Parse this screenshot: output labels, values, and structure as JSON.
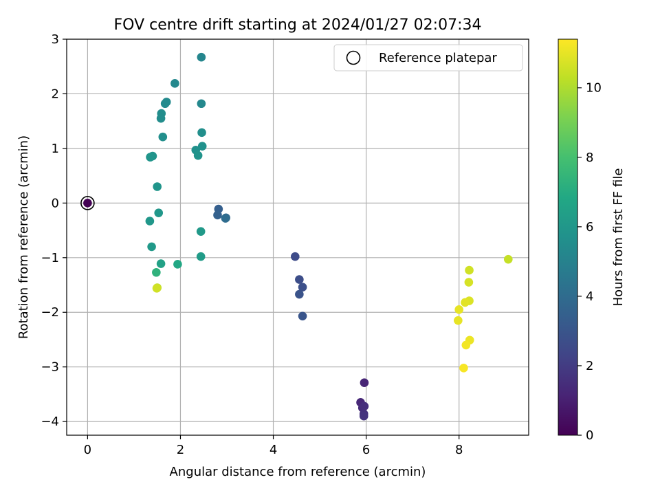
{
  "chart_data": {
    "type": "scatter",
    "title": "FOV centre drift starting at 2024/01/27 02:07:34",
    "xlabel": "Angular distance from reference (arcmin)",
    "ylabel": "Rotation from reference (arcmin)",
    "xlim": [
      -0.45,
      9.5
    ],
    "ylim": [
      -4.25,
      3.0
    ],
    "xticks": [
      0,
      2,
      4,
      6,
      8
    ],
    "yticks": [
      -4,
      -3,
      -2,
      -1,
      0,
      1,
      2,
      3
    ],
    "xtick_labels": [
      "0",
      "2",
      "4",
      "6",
      "8"
    ],
    "ytick_labels": [
      "−4",
      "−3",
      "−2",
      "−1",
      "0",
      "1",
      "2",
      "3"
    ],
    "grid": true,
    "legend": {
      "placement": "top-right",
      "entries": [
        {
          "label": "Reference platepar",
          "marker": "open-circle"
        }
      ]
    },
    "colorbar": {
      "label": "Hours from first FF file",
      "colormap": "viridis",
      "range": [
        0,
        11.4
      ],
      "ticks": [
        0,
        2,
        4,
        6,
        8,
        10
      ],
      "tick_labels": [
        "0",
        "2",
        "4",
        "6",
        "8",
        "10"
      ]
    },
    "reference_point": {
      "x": 0,
      "y": 0
    },
    "points": [
      {
        "x": 0.0,
        "y": 0.0,
        "c": 0.0
      },
      {
        "x": 5.96,
        "y": -3.29,
        "c": 1.2
      },
      {
        "x": 5.88,
        "y": -3.65,
        "c": 1.3
      },
      {
        "x": 5.92,
        "y": -3.75,
        "c": 1.4
      },
      {
        "x": 5.96,
        "y": -3.72,
        "c": 1.5
      },
      {
        "x": 5.95,
        "y": -3.86,
        "c": 1.6
      },
      {
        "x": 5.95,
        "y": -3.9,
        "c": 1.7
      },
      {
        "x": 4.47,
        "y": -0.98,
        "c": 2.6
      },
      {
        "x": 4.56,
        "y": -1.4,
        "c": 2.7
      },
      {
        "x": 4.63,
        "y": -1.54,
        "c": 2.8
      },
      {
        "x": 4.56,
        "y": -1.67,
        "c": 2.9
      },
      {
        "x": 4.63,
        "y": -2.07,
        "c": 3.0
      },
      {
        "x": 2.82,
        "y": -0.11,
        "c": 3.4
      },
      {
        "x": 2.8,
        "y": -0.22,
        "c": 3.5
      },
      {
        "x": 2.98,
        "y": -0.27,
        "c": 3.8
      },
      {
        "x": 2.97,
        "y": -0.28,
        "c": 4.0
      },
      {
        "x": 2.45,
        "y": 2.67,
        "c": 5.2
      },
      {
        "x": 1.88,
        "y": 2.19,
        "c": 5.3
      },
      {
        "x": 2.45,
        "y": 1.82,
        "c": 5.3
      },
      {
        "x": 1.7,
        "y": 1.85,
        "c": 5.4
      },
      {
        "x": 1.67,
        "y": 1.82,
        "c": 5.4
      },
      {
        "x": 1.59,
        "y": 1.64,
        "c": 5.5
      },
      {
        "x": 1.58,
        "y": 1.55,
        "c": 5.5
      },
      {
        "x": 2.46,
        "y": 1.29,
        "c": 5.6
      },
      {
        "x": 1.62,
        "y": 1.21,
        "c": 5.6
      },
      {
        "x": 2.47,
        "y": 1.04,
        "c": 5.7
      },
      {
        "x": 2.33,
        "y": 0.97,
        "c": 5.7
      },
      {
        "x": 2.38,
        "y": 0.87,
        "c": 5.8
      },
      {
        "x": 1.4,
        "y": 0.86,
        "c": 5.8
      },
      {
        "x": 1.35,
        "y": 0.84,
        "c": 5.9
      },
      {
        "x": 1.5,
        "y": 0.3,
        "c": 5.9
      },
      {
        "x": 1.53,
        "y": -0.18,
        "c": 6.0
      },
      {
        "x": 1.34,
        "y": -0.33,
        "c": 6.0
      },
      {
        "x": 2.44,
        "y": -0.52,
        "c": 6.1
      },
      {
        "x": 1.38,
        "y": -0.8,
        "c": 6.1
      },
      {
        "x": 2.44,
        "y": -0.98,
        "c": 6.2
      },
      {
        "x": 1.58,
        "y": -1.11,
        "c": 6.5
      },
      {
        "x": 1.94,
        "y": -1.12,
        "c": 6.8
      },
      {
        "x": 1.48,
        "y": -1.27,
        "c": 7.3
      },
      {
        "x": 1.5,
        "y": -1.55,
        "c": 10.3
      },
      {
        "x": 1.49,
        "y": -1.56,
        "c": 10.6
      },
      {
        "x": 9.06,
        "y": -1.03,
        "c": 10.4
      },
      {
        "x": 8.22,
        "y": -1.23,
        "c": 10.6
      },
      {
        "x": 8.21,
        "y": -1.45,
        "c": 10.7
      },
      {
        "x": 8.22,
        "y": -1.79,
        "c": 10.8
      },
      {
        "x": 8.13,
        "y": -1.82,
        "c": 10.9
      },
      {
        "x": 8.0,
        "y": -1.95,
        "c": 11.0
      },
      {
        "x": 7.98,
        "y": -2.15,
        "c": 11.0
      },
      {
        "x": 8.23,
        "y": -2.51,
        "c": 11.1
      },
      {
        "x": 8.15,
        "y": -2.6,
        "c": 11.2
      },
      {
        "x": 8.1,
        "y": -3.02,
        "c": 11.3
      }
    ]
  }
}
